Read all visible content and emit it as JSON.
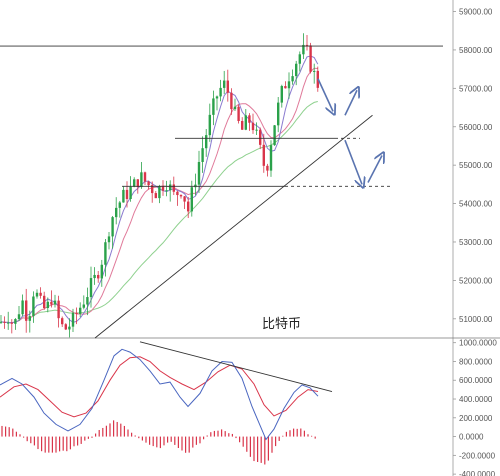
{
  "chart_data": [
    {
      "type": "candlestick",
      "label": "比特币",
      "y_axis_side": "right",
      "ylim": [
        50500,
        59300
      ],
      "yticks": [
        "51000.00",
        "52000.00",
        "53000.00",
        "54000.00",
        "55000.00",
        "56000.00",
        "57000.00",
        "58000.00",
        "59000.00"
      ],
      "ytick_values": [
        51000,
        52000,
        53000,
        54000,
        55000,
        56000,
        57000,
        58000,
        59000
      ],
      "horizontal_levels": [
        {
          "value": 58100,
          "style": "solid"
        },
        {
          "value": 55700,
          "style": "solid-then-dashed"
        },
        {
          "value": 54450,
          "style": "solid-then-dashed"
        }
      ],
      "trendline": {
        "from": [
          0.19,
          50500
        ],
        "to": [
          0.745,
          56300
        ]
      },
      "forecast_arrows": "down to 55700, up; down to 54450, up",
      "colors": {
        "up": "#2aa14a",
        "down": "#d9354a",
        "ma_fast": "#8a7bd0",
        "ma_slow": "#8fd18f",
        "ma_mid": "#e07a9a",
        "levels": "#333333",
        "arrows": "#5a74b0"
      }
    },
    {
      "type": "macd",
      "y_axis_side": "right",
      "ylim": [
        -420,
        1050
      ],
      "yticks": [
        "-400.0000",
        "-200.0000",
        "0.0000",
        "200.0000",
        "400.0000",
        "600.0000",
        "800.0000",
        "1000.0000"
      ],
      "ytick_values": [
        -400,
        -200,
        0,
        200,
        400,
        600,
        800,
        1000
      ],
      "colors": {
        "dif": "#4a66c0",
        "dea": "#d9354a",
        "hist": "#d9354a",
        "divergence": "#333333"
      }
    }
  ]
}
